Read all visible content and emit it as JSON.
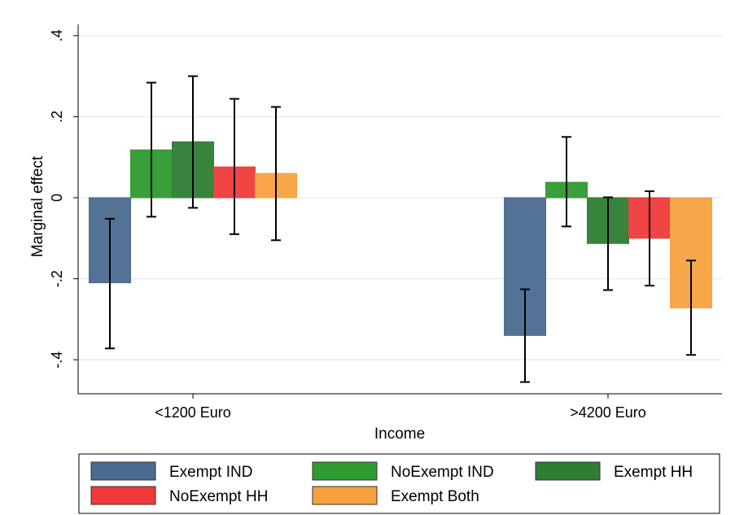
{
  "chart_data": {
    "type": "bar",
    "xlabel": "Income",
    "ylabel": "Marginal effect",
    "categories": [
      "<1200 Euro",
      ">4200 Euro"
    ],
    "ylim": [
      -0.485,
      0.4
    ],
    "yticks": [
      -0.4,
      -0.2,
      0,
      0.2,
      0.4
    ],
    "ytick_labels": [
      "-.4",
      "-.2",
      "0",
      ".2",
      ".4"
    ],
    "grid": true,
    "legend_position": "bottom",
    "series": [
      {
        "name": "Exempt IND",
        "color": "#4a6a8f",
        "values": [
          -0.21,
          -0.34
        ],
        "ci_low": [
          -0.372,
          -0.455
        ],
        "ci_high": [
          -0.052,
          -0.226
        ]
      },
      {
        "name": "NoExempt IND",
        "color": "#2f9a2f",
        "values": [
          0.118,
          0.038
        ],
        "ci_low": [
          -0.047,
          -0.071
        ],
        "ci_high": [
          0.284,
          0.15
        ]
      },
      {
        "name": "Exempt HH",
        "color": "#2e7d32",
        "values": [
          0.138,
          -0.113
        ],
        "ci_low": [
          -0.025,
          -0.228
        ],
        "ci_high": [
          0.3,
          0.001
        ]
      },
      {
        "name": "NoExempt HH",
        "color": "#f03a3a",
        "values": [
          0.076,
          -0.1
        ],
        "ci_low": [
          -0.09,
          -0.217
        ],
        "ci_high": [
          0.244,
          0.016
        ]
      },
      {
        "name": "Exempt Both",
        "color": "#f7a23f",
        "values": [
          0.06,
          -0.272
        ],
        "ci_low": [
          -0.105,
          -0.388
        ],
        "ci_high": [
          0.224,
          -0.155
        ]
      }
    ]
  }
}
